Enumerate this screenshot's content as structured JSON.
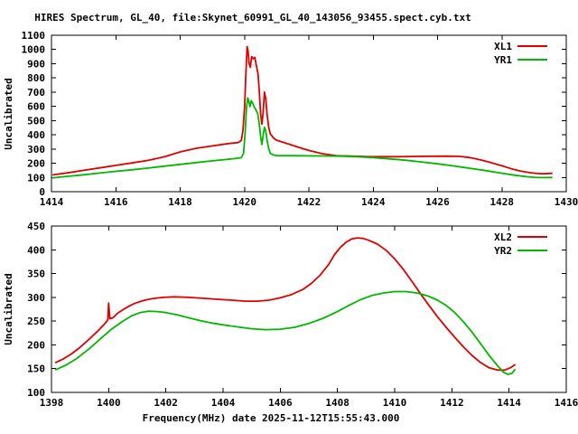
{
  "title": "HIRES Spectrum, GL_40, file:Skynet_60991_GL_40_143056_93455.spect.cyb.txt",
  "colors": {
    "background": "#ffffff",
    "axis": "#000000",
    "xl_red": "#e00000",
    "yr_green": "#00b800"
  },
  "chart_data": [
    {
      "type": "line",
      "panel": "top",
      "ylabel": "Uncalibrated",
      "xlim": [
        1414,
        1430
      ],
      "ylim": [
        0,
        1100
      ],
      "xticks": [
        1414,
        1416,
        1418,
        1420,
        1422,
        1424,
        1426,
        1428,
        1430
      ],
      "yticks": [
        0,
        100,
        200,
        300,
        400,
        500,
        600,
        700,
        800,
        900,
        1000,
        1100
      ],
      "grid": false,
      "legend_position": "top-right-inside",
      "series": [
        {
          "name": "XL1",
          "color": "#e00000",
          "points": [
            [
              1414.05,
              118
            ],
            [
              1414.5,
              132
            ],
            [
              1415,
              150
            ],
            [
              1415.5,
              167
            ],
            [
              1416,
              185
            ],
            [
              1416.5,
              202
            ],
            [
              1417,
              220
            ],
            [
              1417.5,
              245
            ],
            [
              1418,
              280
            ],
            [
              1418.5,
              305
            ],
            [
              1419,
              322
            ],
            [
              1419.5,
              338
            ],
            [
              1419.8,
              345
            ],
            [
              1419.9,
              360
            ],
            [
              1419.95,
              430
            ],
            [
              1420.0,
              590
            ],
            [
              1420.04,
              820
            ],
            [
              1420.08,
              1020
            ],
            [
              1420.11,
              990
            ],
            [
              1420.14,
              905
            ],
            [
              1420.18,
              875
            ],
            [
              1420.22,
              950
            ],
            [
              1420.27,
              935
            ],
            [
              1420.32,
              945
            ],
            [
              1420.37,
              885
            ],
            [
              1420.42,
              830
            ],
            [
              1420.46,
              705
            ],
            [
              1420.5,
              545
            ],
            [
              1420.54,
              475
            ],
            [
              1420.58,
              560
            ],
            [
              1420.62,
              700
            ],
            [
              1420.66,
              655
            ],
            [
              1420.7,
              545
            ],
            [
              1420.75,
              455
            ],
            [
              1420.8,
              408
            ],
            [
              1420.9,
              378
            ],
            [
              1421,
              362
            ],
            [
              1421.3,
              340
            ],
            [
              1421.6,
              318
            ],
            [
              1422,
              290
            ],
            [
              1422.4,
              268
            ],
            [
              1422.85,
              254
            ],
            [
              1423.3,
              250
            ],
            [
              1423.8,
              247
            ],
            [
              1424.3,
              246
            ],
            [
              1424.8,
              246
            ],
            [
              1425.3,
              248
            ],
            [
              1425.8,
              249
            ],
            [
              1426.3,
              250
            ],
            [
              1426.7,
              248
            ],
            [
              1427,
              240
            ],
            [
              1427.3,
              226
            ],
            [
              1427.6,
              208
            ],
            [
              1428,
              182
            ],
            [
              1428.3,
              161
            ],
            [
              1428.6,
              144
            ],
            [
              1428.9,
              133
            ],
            [
              1429.1,
              128
            ],
            [
              1429.3,
              126
            ],
            [
              1429.55,
              129
            ]
          ]
        },
        {
          "name": "YR1",
          "color": "#00b800",
          "points": [
            [
              1414.05,
              98
            ],
            [
              1414.5,
              108
            ],
            [
              1415,
              119
            ],
            [
              1415.5,
              131
            ],
            [
              1416,
              143
            ],
            [
              1416.5,
              154
            ],
            [
              1417,
              166
            ],
            [
              1417.5,
              179
            ],
            [
              1418,
              192
            ],
            [
              1418.5,
              205
            ],
            [
              1419,
              217
            ],
            [
              1419.4,
              226
            ],
            [
              1419.7,
              233
            ],
            [
              1419.9,
              239
            ],
            [
              1419.97,
              270
            ],
            [
              1420.02,
              420
            ],
            [
              1420.06,
              590
            ],
            [
              1420.1,
              660
            ],
            [
              1420.13,
              638
            ],
            [
              1420.17,
              598
            ],
            [
              1420.21,
              640
            ],
            [
              1420.26,
              618
            ],
            [
              1420.31,
              592
            ],
            [
              1420.36,
              572
            ],
            [
              1420.41,
              548
            ],
            [
              1420.46,
              475
            ],
            [
              1420.5,
              385
            ],
            [
              1420.54,
              332
            ],
            [
              1420.58,
              398
            ],
            [
              1420.62,
              452
            ],
            [
              1420.66,
              428
            ],
            [
              1420.7,
              362
            ],
            [
              1420.75,
              305
            ],
            [
              1420.8,
              270
            ],
            [
              1420.9,
              258
            ],
            [
              1421,
              254
            ],
            [
              1421.5,
              253
            ],
            [
              1422,
              252
            ],
            [
              1422.5,
              251
            ],
            [
              1423,
              250
            ],
            [
              1423.5,
              246
            ],
            [
              1424,
              240
            ],
            [
              1424.5,
              231
            ],
            [
              1425,
              221
            ],
            [
              1425.5,
              209
            ],
            [
              1426,
              196
            ],
            [
              1426.5,
              181
            ],
            [
              1427,
              165
            ],
            [
              1427.5,
              148
            ],
            [
              1428,
              130
            ],
            [
              1428.4,
              116
            ],
            [
              1428.8,
              105
            ],
            [
              1429,
              101
            ],
            [
              1429.2,
              99
            ],
            [
              1429.55,
              100
            ]
          ]
        }
      ]
    },
    {
      "type": "line",
      "panel": "bottom",
      "ylabel": "Uncalibrated",
      "xlabel": "Frequency(MHz) date 2025-11-12T15:55:43.000",
      "xlim": [
        1398,
        1416
      ],
      "ylim": [
        100,
        450
      ],
      "xticks": [
        1398,
        1400,
        1402,
        1404,
        1406,
        1408,
        1410,
        1412,
        1414,
        1416
      ],
      "yticks": [
        100,
        150,
        200,
        250,
        300,
        350,
        400,
        450
      ],
      "grid": false,
      "legend_position": "top-right-inside",
      "series": [
        {
          "name": "XL2",
          "color": "#e00000",
          "points": [
            [
              1398.15,
              163
            ],
            [
              1398.4,
              170
            ],
            [
              1398.7,
              181
            ],
            [
              1399,
              195
            ],
            [
              1399.3,
              211
            ],
            [
              1399.6,
              228
            ],
            [
              1399.9,
              247
            ],
            [
              1399.97,
              253
            ],
            [
              1400.0,
              288
            ],
            [
              1400.04,
              255
            ],
            [
              1400.15,
              257
            ],
            [
              1400.3,
              266
            ],
            [
              1400.5,
              274
            ],
            [
              1400.7,
              281
            ],
            [
              1400.9,
              287
            ],
            [
              1401.2,
              293
            ],
            [
              1401.5,
              297
            ],
            [
              1401.9,
              300
            ],
            [
              1402.3,
              301
            ],
            [
              1402.8,
              300
            ],
            [
              1403.3,
              298
            ],
            [
              1403.8,
              296
            ],
            [
              1404.3,
              294
            ],
            [
              1404.8,
              292
            ],
            [
              1405.2,
              292
            ],
            [
              1405.6,
              294
            ],
            [
              1406,
              299
            ],
            [
              1406.4,
              306
            ],
            [
              1406.8,
              317
            ],
            [
              1407.1,
              330
            ],
            [
              1407.4,
              347
            ],
            [
              1407.7,
              370
            ],
            [
              1407.9,
              390
            ],
            [
              1408.1,
              405
            ],
            [
              1408.3,
              416
            ],
            [
              1408.5,
              423
            ],
            [
              1408.7,
              425
            ],
            [
              1408.9,
              424
            ],
            [
              1409.1,
              420
            ],
            [
              1409.4,
              412
            ],
            [
              1409.7,
              399
            ],
            [
              1410,
              381
            ],
            [
              1410.3,
              359
            ],
            [
              1410.6,
              334
            ],
            [
              1410.9,
              308
            ],
            [
              1411.2,
              283
            ],
            [
              1411.5,
              259
            ],
            [
              1411.8,
              237
            ],
            [
              1412.1,
              216
            ],
            [
              1412.4,
              196
            ],
            [
              1412.7,
              178
            ],
            [
              1413,
              163
            ],
            [
              1413.3,
              152
            ],
            [
              1413.6,
              147
            ],
            [
              1413.85,
              147
            ],
            [
              1414.05,
              152
            ],
            [
              1414.2,
              158
            ]
          ]
        },
        {
          "name": "YR2",
          "color": "#00b800",
          "points": [
            [
              1398.15,
              148
            ],
            [
              1398.5,
              157
            ],
            [
              1398.9,
              172
            ],
            [
              1399.3,
              191
            ],
            [
              1399.7,
              212
            ],
            [
              1400.1,
              233
            ],
            [
              1400.5,
              250
            ],
            [
              1400.8,
              261
            ],
            [
              1401.1,
              268
            ],
            [
              1401.4,
              271
            ],
            [
              1401.7,
              270
            ],
            [
              1402,
              268
            ],
            [
              1402.4,
              263
            ],
            [
              1402.8,
              257
            ],
            [
              1403.2,
              251
            ],
            [
              1403.6,
              246
            ],
            [
              1404,
              242
            ],
            [
              1404.5,
              238
            ],
            [
              1405,
              234
            ],
            [
              1405.5,
              232
            ],
            [
              1406,
              233
            ],
            [
              1406.5,
              237
            ],
            [
              1407,
              245
            ],
            [
              1407.5,
              256
            ],
            [
              1408,
              270
            ],
            [
              1408.4,
              283
            ],
            [
              1408.8,
              295
            ],
            [
              1409.2,
              304
            ],
            [
              1409.6,
              309
            ],
            [
              1410,
              312
            ],
            [
              1410.4,
              312
            ],
            [
              1410.8,
              309
            ],
            [
              1411.2,
              302
            ],
            [
              1411.5,
              294
            ],
            [
              1411.8,
              283
            ],
            [
              1412.1,
              268
            ],
            [
              1412.4,
              249
            ],
            [
              1412.7,
              227
            ],
            [
              1413,
              203
            ],
            [
              1413.3,
              178
            ],
            [
              1413.6,
              156
            ],
            [
              1413.8,
              143
            ],
            [
              1413.95,
              138
            ],
            [
              1414.1,
              140
            ],
            [
              1414.2,
              148
            ]
          ]
        }
      ]
    }
  ]
}
